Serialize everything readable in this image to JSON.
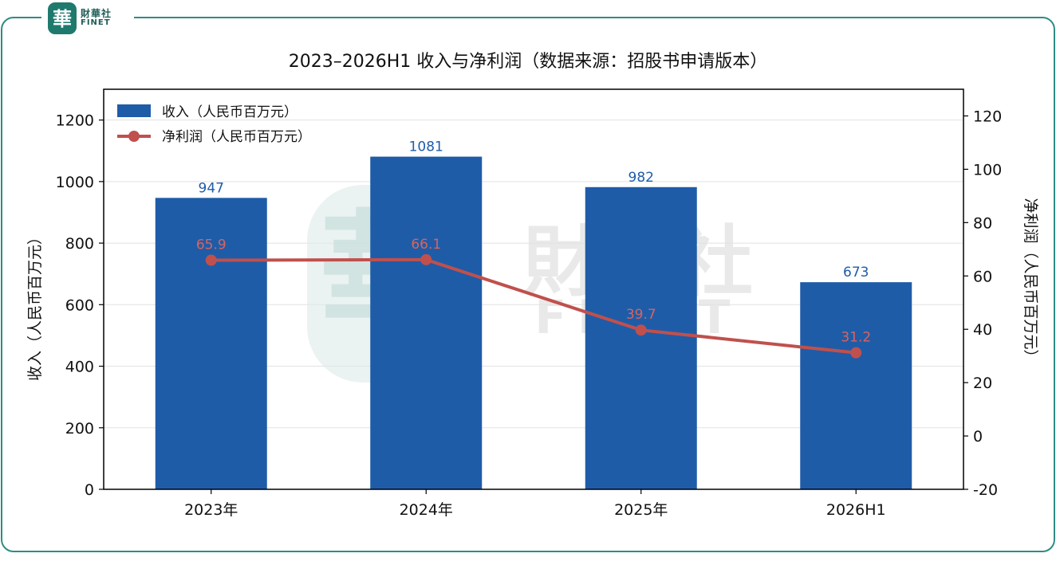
{
  "brand": {
    "logo_glyph": "華",
    "name_cn": "財華社",
    "name_en": "FINET",
    "accent": "#1f7a6e",
    "frame_color": "#2f8c84"
  },
  "chart_data": {
    "type": "bar+line",
    "title": "2023–2026H1 收入与净利润（数据来源：招股书申请版本）",
    "categories": [
      "2023年",
      "2024年",
      "2025年",
      "2026H1"
    ],
    "series": [
      {
        "name": "收入（人民币百万元）",
        "type": "bar",
        "axis": "left",
        "values": [
          947,
          1081,
          982,
          673
        ],
        "color": "#1f5ca8",
        "label_color": "#1f5ca8"
      },
      {
        "name": "净利润（人民币百万元）",
        "type": "line",
        "axis": "right",
        "values": [
          65.9,
          66.1,
          39.7,
          31.2
        ],
        "color": "#c0504d",
        "label_color": "#d9635e"
      }
    ],
    "ylabel_left": "收入（人民币百万元）",
    "ylabel_right": "净利润（人民币百万元）",
    "ylim_left": [
      0,
      1300
    ],
    "yticks_left": [
      0,
      200,
      400,
      600,
      800,
      1000,
      1200
    ],
    "ylim_right": [
      -20,
      130
    ],
    "yticks_right": [
      -20,
      0,
      20,
      40,
      60,
      80,
      100,
      120
    ],
    "grid": "horizontal",
    "legend_position": "top-left",
    "watermark": {
      "glyph": "華",
      "name_cn": "財華社",
      "name_en": "FINET"
    }
  }
}
